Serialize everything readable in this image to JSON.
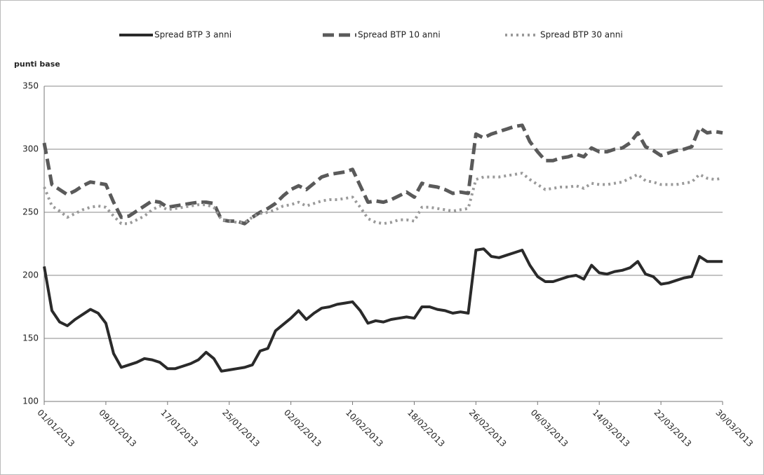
{
  "chart_data": {
    "type": "line",
    "y_label": "punti base",
    "x": [
      "01/01/2013",
      "02/01/2013",
      "03/01/2013",
      "04/01/2013",
      "05/01/2013",
      "06/01/2013",
      "07/01/2013",
      "08/01/2013",
      "09/01/2013",
      "10/01/2013",
      "11/01/2013",
      "12/01/2013",
      "13/01/2013",
      "14/01/2013",
      "15/01/2013",
      "16/01/2013",
      "17/01/2013",
      "18/01/2013",
      "19/01/2013",
      "20/01/2013",
      "21/01/2013",
      "22/01/2013",
      "23/01/2013",
      "24/01/2013",
      "25/01/2013",
      "26/01/2013",
      "27/01/2013",
      "28/01/2013",
      "29/01/2013",
      "30/01/2013",
      "31/01/2013",
      "01/02/2013",
      "02/02/2013",
      "03/02/2013",
      "04/02/2013",
      "05/02/2013",
      "06/02/2013",
      "07/02/2013",
      "08/02/2013",
      "09/02/2013",
      "10/02/2013",
      "11/02/2013",
      "12/02/2013",
      "13/02/2013",
      "14/02/2013",
      "15/02/2013",
      "16/02/2013",
      "17/02/2013",
      "18/02/2013",
      "19/02/2013",
      "20/02/2013",
      "21/02/2013",
      "22/02/2013",
      "23/02/2013",
      "24/02/2013",
      "25/02/2013",
      "26/02/2013",
      "27/02/2013",
      "28/02/2013",
      "01/03/2013",
      "02/03/2013",
      "03/03/2013",
      "04/03/2013",
      "05/03/2013",
      "06/03/2013",
      "07/03/2013",
      "08/03/2013",
      "09/03/2013",
      "10/03/2013",
      "11/03/2013",
      "12/03/2013",
      "13/03/2013",
      "14/03/2013",
      "15/03/2013",
      "16/03/2013",
      "17/03/2013",
      "18/03/2013",
      "19/03/2013",
      "20/03/2013",
      "21/03/2013",
      "22/03/2013",
      "23/03/2013",
      "24/03/2013",
      "25/03/2013",
      "26/03/2013",
      "27/03/2013",
      "28/03/2013",
      "29/03/2013",
      "30/03/2013"
    ],
    "xticks": [
      "01/01/2013",
      "09/01/2013",
      "17/01/2013",
      "25/01/2013",
      "02/02/2013",
      "10/02/2013",
      "18/02/2013",
      "26/02/2013",
      "06/03/2013",
      "14/03/2013",
      "22/03/2013",
      "30/03/2013"
    ],
    "ylim": [
      100,
      350
    ],
    "yticks": [
      100,
      150,
      200,
      250,
      300,
      350
    ],
    "grid": true,
    "legend": "top",
    "series": [
      {
        "name": "Spread BTP 3 anni",
        "color": "#2a2a2a",
        "line_style": "solid",
        "values": [
          207,
          172,
          163,
          160,
          165,
          169,
          173,
          170,
          162,
          138,
          127,
          129,
          131,
          134,
          133,
          131,
          126,
          126,
          128,
          130,
          133,
          139,
          134,
          124,
          125,
          126,
          127,
          129,
          140,
          142,
          156,
          161,
          166,
          172,
          165,
          170,
          174,
          175,
          177,
          178,
          179,
          172,
          162,
          164,
          163,
          165,
          166,
          167,
          166,
          175,
          175,
          173,
          172,
          170,
          171,
          170,
          220,
          221,
          215,
          214,
          216,
          218,
          220,
          208,
          199,
          195,
          195,
          197,
          199,
          200,
          197,
          208,
          202,
          201,
          203,
          204,
          206,
          211,
          201,
          199,
          193,
          194,
          196,
          198,
          199,
          215,
          211,
          211,
          211
        ]
      },
      {
        "name": "Spread BTP 10 anni",
        "color": "#5a5a5a",
        "line_style": "dashed",
        "values": [
          305,
          272,
          268,
          264,
          267,
          271,
          274,
          273,
          272,
          258,
          246,
          247,
          251,
          255,
          259,
          258,
          254,
          255,
          256,
          257,
          258,
          258,
          257,
          244,
          243,
          243,
          241,
          246,
          250,
          253,
          257,
          263,
          268,
          271,
          268,
          273,
          278,
          280,
          281,
          282,
          284,
          271,
          258,
          259,
          258,
          260,
          263,
          266,
          262,
          273,
          271,
          270,
          268,
          265,
          266,
          265,
          312,
          309,
          312,
          314,
          316,
          318,
          319,
          306,
          298,
          291,
          291,
          293,
          294,
          296,
          294,
          301,
          298,
          298,
          300,
          301,
          305,
          313,
          302,
          299,
          295,
          297,
          299,
          300,
          302,
          317,
          313,
          314,
          313
        ]
      },
      {
        "name": "Spread BTP 30 anni",
        "color": "#9a9a9a",
        "line_style": "dotted",
        "values": [
          270,
          255,
          251,
          246,
          249,
          252,
          254,
          255,
          254,
          247,
          241,
          241,
          244,
          247,
          252,
          255,
          252,
          253,
          254,
          255,
          256,
          256,
          254,
          244,
          243,
          242,
          242,
          246,
          249,
          250,
          252,
          255,
          256,
          258,
          255,
          257,
          259,
          260,
          260,
          261,
          262,
          254,
          245,
          242,
          241,
          242,
          244,
          244,
          243,
          254,
          254,
          253,
          252,
          251,
          252,
          253,
          276,
          278,
          278,
          278,
          279,
          280,
          281,
          276,
          272,
          268,
          269,
          270,
          270,
          271,
          269,
          273,
          272,
          272,
          273,
          274,
          277,
          280,
          275,
          274,
          272,
          272,
          272,
          273,
          274,
          280,
          277,
          276,
          277
        ]
      }
    ]
  }
}
